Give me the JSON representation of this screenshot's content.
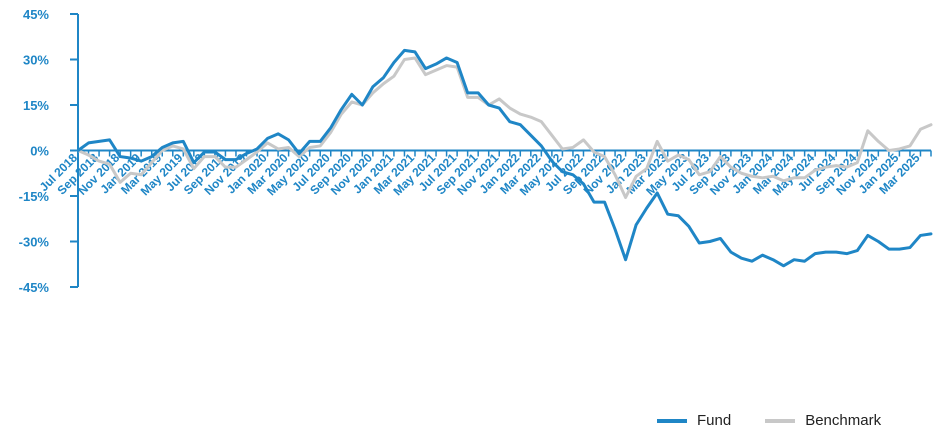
{
  "chart_data": {
    "type": "line",
    "title": "",
    "xlabel": "",
    "ylabel": "",
    "ylim": [
      -45,
      45
    ],
    "yticks": [
      "45%",
      "30%",
      "15%",
      "0%",
      "-15%",
      "-30%",
      "-45%"
    ],
    "ytick_values": [
      45,
      30,
      15,
      0,
      -15,
      -30,
      -45
    ],
    "x": [
      "Jul 2018",
      "Aug 2018",
      "Sep 2018",
      "Oct 2018",
      "Nov 2018",
      "Dec 2018",
      "Jan 2019",
      "Feb 2019",
      "Mar 2019",
      "Apr 2019",
      "May 2019",
      "Jun 2019",
      "Jul 2019",
      "Aug 2019",
      "Sep 2019",
      "Oct 2019",
      "Nov 2019",
      "Dec 2019",
      "Jan 2020",
      "Feb 2020",
      "Mar 2020",
      "Apr 2020",
      "May 2020",
      "Jun 2020",
      "Jul 2020",
      "Aug 2020",
      "Sep 2020",
      "Oct 2020",
      "Nov 2020",
      "Dec 2020",
      "Jan 2021",
      "Feb 2021",
      "Mar 2021",
      "Apr 2021",
      "May 2021",
      "Jun 2021",
      "Jul 2021",
      "Aug 2021",
      "Sep 2021",
      "Oct 2021",
      "Nov 2021",
      "Dec 2021",
      "Jan 2022",
      "Feb 2022",
      "Mar 2022",
      "Apr 2022",
      "May 2022",
      "Jun 2022",
      "Jul 2022",
      "Aug 2022",
      "Sep 2022",
      "Oct 2022",
      "Nov 2022",
      "Dec 2022",
      "Jan 2023",
      "Feb 2023",
      "Mar 2023",
      "Apr 2023",
      "May 2023",
      "Jun 2023",
      "Jul 2023",
      "Aug 2023",
      "Sep 2023",
      "Oct 2023",
      "Nov 2023",
      "Dec 2023",
      "Jan 2024",
      "Feb 2024",
      "Mar 2024",
      "Apr 2024",
      "May 2024",
      "Jun 2024",
      "Jul 2024",
      "Aug 2024",
      "Sep 2024",
      "Oct 2024",
      "Nov 2024",
      "Dec 2024",
      "Jan 2025",
      "Feb 2025",
      "Mar 2025",
      "Apr 2025"
    ],
    "xtick_labels": [
      "Jul 2018",
      "Sep 2018",
      "Nov 2018",
      "Jan 2019",
      "Mar 2019",
      "May 2019",
      "Jul 2019",
      "Sep 2019",
      "Nov 2019",
      "Jan 2020",
      "Mar 2020",
      "May 2020",
      "Jul 2020",
      "Sep 2020",
      "Nov 2020",
      "Jan 2021",
      "Mar 2021",
      "May 2021",
      "Jul 2021",
      "Sep 2021",
      "Nov 2021",
      "Jan 2022",
      "Mar 2022",
      "May 2022",
      "Jul 2022",
      "Sep 2022",
      "Nov 2022",
      "Jan 2023",
      "Mar 2023",
      "May 2023",
      "Jul 2023",
      "Sep 2023",
      "Nov 2023",
      "Jan 2024",
      "Mar 2024",
      "May 2024",
      "Jul 2024",
      "Sep 2024",
      "Nov 2024",
      "Jan 2025",
      "Mar 2025"
    ],
    "series": [
      {
        "name": "Fund",
        "color": "#1f86c6",
        "values": [
          0,
          2.5,
          3,
          3.5,
          -2,
          -2.5,
          -3.5,
          -2,
          1,
          2.5,
          3,
          -4,
          -0.5,
          -0.5,
          -3,
          -3,
          -1,
          0.5,
          4,
          5.5,
          3.5,
          -1,
          3,
          3,
          7.5,
          13.5,
          18.5,
          15,
          21,
          24,
          29,
          33,
          32.5,
          27,
          28.5,
          30.5,
          29,
          19,
          19,
          15,
          14,
          9.5,
          8.5,
          5,
          1.5,
          -3.5,
          -7,
          -8,
          -11,
          -17,
          -17,
          -26,
          -36,
          -24.5,
          -19,
          -14,
          -21,
          -21.5,
          -25,
          -30.5,
          -30,
          -29,
          -33.5,
          -35.5,
          -36.5,
          -34.5,
          -36,
          -38,
          -36,
          -36.5,
          -34,
          -33.5,
          -33.5,
          -34,
          -33,
          -28,
          -30,
          -32.5,
          -32.5,
          -32,
          -28,
          -27.5
        ]
      },
      {
        "name": "Benchmark",
        "color": "#c8c8c8",
        "values": [
          0,
          -1.5,
          -3.5,
          -4.5,
          -10.5,
          -7.5,
          -8,
          -4,
          0,
          1.5,
          0.5,
          -6,
          -2,
          -2,
          -5.5,
          -5.5,
          -3,
          -0.5,
          2.5,
          0.5,
          1,
          -2,
          1,
          1.5,
          6,
          12,
          16,
          15,
          19,
          22,
          24.5,
          30,
          30.5,
          25,
          26.5,
          28,
          27.5,
          17.5,
          17.5,
          15,
          17,
          14,
          12,
          11,
          9.5,
          5,
          0.5,
          1,
          3.5,
          -0.5,
          -2,
          -8,
          -15.5,
          -8.5,
          -6,
          3,
          -3.5,
          -1.5,
          -3,
          -8,
          -7,
          -2,
          -5.5,
          -7.5,
          -8.5,
          -9,
          -8.5,
          -10,
          -9,
          -9,
          -6.5,
          -5.5,
          -5,
          -5.5,
          -4,
          6.5,
          3,
          0,
          0.5,
          1.5,
          7,
          8.5
        ]
      }
    ],
    "legend": {
      "placement": "bottom-right",
      "entries": [
        "Fund",
        "Benchmark"
      ]
    },
    "grid": false
  }
}
